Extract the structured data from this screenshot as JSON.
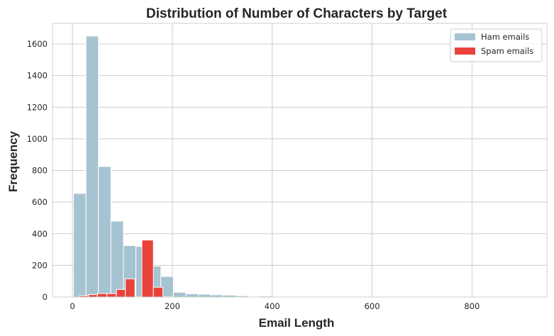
{
  "chart_data": {
    "type": "histogram",
    "title": "Distribution of Number of Characters by Target",
    "xlabel": "Email Length",
    "ylabel": "Frequency",
    "xlim": [
      -40,
      950
    ],
    "ylim": [
      0,
      1730
    ],
    "xticks": [
      0,
      200,
      400,
      600,
      800
    ],
    "yticks": [
      0,
      200,
      400,
      600,
      800,
      1000,
      1200,
      1400,
      1600
    ],
    "grid": true,
    "legend_position": "top-right",
    "series": [
      {
        "name": "Ham emails",
        "color": "#a6c3d1",
        "bins": [
          {
            "x0": 2,
            "x1": 27,
            "count": 655
          },
          {
            "x0": 27,
            "x1": 52,
            "count": 1650
          },
          {
            "x0": 52,
            "x1": 77,
            "count": 825
          },
          {
            "x0": 77,
            "x1": 102,
            "count": 480
          },
          {
            "x0": 102,
            "x1": 127,
            "count": 325
          },
          {
            "x0": 127,
            "x1": 152,
            "count": 320
          },
          {
            "x0": 152,
            "x1": 177,
            "count": 195
          },
          {
            "x0": 177,
            "x1": 202,
            "count": 130
          },
          {
            "x0": 202,
            "x1": 227,
            "count": 30
          },
          {
            "x0": 227,
            "x1": 252,
            "count": 20
          },
          {
            "x0": 252,
            "x1": 277,
            "count": 18
          },
          {
            "x0": 277,
            "x1": 302,
            "count": 14
          },
          {
            "x0": 302,
            "x1": 327,
            "count": 12
          },
          {
            "x0": 327,
            "x1": 352,
            "count": 8
          },
          {
            "x0": 352,
            "x1": 377,
            "count": 3
          },
          {
            "x0": 377,
            "x1": 402,
            "count": 6
          },
          {
            "x0": 402,
            "x1": 427,
            "count": 3
          },
          {
            "x0": 427,
            "x1": 452,
            "count": 2
          },
          {
            "x0": 452,
            "x1": 477,
            "count": 1
          },
          {
            "x0": 477,
            "x1": 502,
            "count": 1
          },
          {
            "x0": 502,
            "x1": 527,
            "count": 1
          },
          {
            "x0": 527,
            "x1": 552,
            "count": 1
          },
          {
            "x0": 552,
            "x1": 577,
            "count": 1
          },
          {
            "x0": 577,
            "x1": 602,
            "count": 1
          },
          {
            "x0": 602,
            "x1": 627,
            "count": 1
          },
          {
            "x0": 627,
            "x1": 652,
            "count": 1
          },
          {
            "x0": 652,
            "x1": 677,
            "count": 1
          },
          {
            "x0": 677,
            "x1": 702,
            "count": 1
          },
          {
            "x0": 702,
            "x1": 727,
            "count": 1
          },
          {
            "x0": 727,
            "x1": 752,
            "count": 1
          },
          {
            "x0": 752,
            "x1": 777,
            "count": 1
          },
          {
            "x0": 777,
            "x1": 802,
            "count": 1
          },
          {
            "x0": 802,
            "x1": 827,
            "count": 1
          },
          {
            "x0": 827,
            "x1": 852,
            "count": 1
          },
          {
            "x0": 852,
            "x1": 877,
            "count": 1
          },
          {
            "x0": 877,
            "x1": 902,
            "count": 1
          }
        ]
      },
      {
        "name": "Spam emails",
        "color": "#e8423b",
        "bins": [
          {
            "x0": 13,
            "x1": 32,
            "count": 8
          },
          {
            "x0": 32,
            "x1": 50,
            "count": 15
          },
          {
            "x0": 50,
            "x1": 69,
            "count": 22
          },
          {
            "x0": 69,
            "x1": 88,
            "count": 22
          },
          {
            "x0": 88,
            "x1": 106,
            "count": 48
          },
          {
            "x0": 106,
            "x1": 125,
            "count": 115
          },
          {
            "x0": 125,
            "x1": 139,
            "count": 2
          },
          {
            "x0": 139,
            "x1": 162,
            "count": 360
          },
          {
            "x0": 162,
            "x1": 181,
            "count": 62
          },
          {
            "x0": 181,
            "x1": 200,
            "count": 2
          }
        ]
      }
    ]
  }
}
